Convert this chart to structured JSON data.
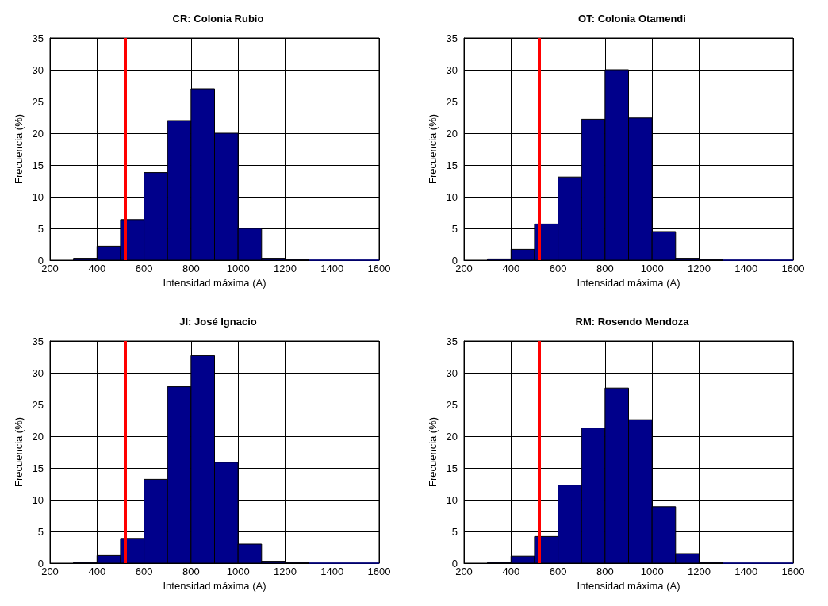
{
  "chart_data": [
    {
      "type": "histogram",
      "title": "CR: Colonia Rubio",
      "xlabel": "Intensidad máxima (A)",
      "ylabel": "Frecuencia (%)",
      "bins": [
        300,
        400,
        500,
        600,
        700,
        800,
        900,
        1000,
        1100,
        1200,
        1300,
        1400,
        1500,
        1600
      ],
      "values": [
        0.3,
        2.2,
        6.4,
        13.8,
        22,
        27,
        20,
        5,
        0.3,
        0.1,
        0,
        0,
        0
      ],
      "color": "#00008b",
      "xlim": [
        200,
        1600
      ],
      "xticks": [
        200,
        400,
        600,
        800,
        1000,
        1200,
        1400,
        1600
      ],
      "ylim": [
        0,
        35
      ],
      "yticks": [
        0,
        5,
        10,
        15,
        20,
        25,
        30,
        35
      ],
      "grid": true,
      "ref_lines": [
        {
          "axis": "x",
          "value": 520,
          "color": "#ff0000"
        }
      ]
    },
    {
      "type": "histogram",
      "title": "OT: Colonia Otamendi",
      "xlabel": "Intensidad máxima (A)",
      "ylabel": "Frecuencia (%)",
      "bins": [
        300,
        400,
        500,
        600,
        700,
        800,
        900,
        1000,
        1100,
        1200,
        1300,
        1400,
        1500,
        1600
      ],
      "values": [
        0.2,
        1.7,
        5.7,
        13.1,
        22.2,
        30,
        22.4,
        4.5,
        0.3,
        0.1,
        0,
        0,
        0
      ],
      "color": "#00008b",
      "xlim": [
        200,
        1600
      ],
      "xticks": [
        200,
        400,
        600,
        800,
        1000,
        1200,
        1400,
        1600
      ],
      "ylim": [
        0,
        35
      ],
      "yticks": [
        0,
        5,
        10,
        15,
        20,
        25,
        30,
        35
      ],
      "grid": true,
      "ref_lines": [
        {
          "axis": "x",
          "value": 520,
          "color": "#ff0000"
        }
      ]
    },
    {
      "type": "histogram",
      "title": "JI: José Ignacio",
      "xlabel": "Intensidad máxima (A)",
      "ylabel": "Frecuencia (%)",
      "bins": [
        300,
        400,
        500,
        600,
        700,
        800,
        900,
        1000,
        1100,
        1200,
        1300,
        1400,
        1500,
        1600
      ],
      "values": [
        0.1,
        1.2,
        3.9,
        13.2,
        27.8,
        32.7,
        15.9,
        3,
        0.3,
        0.1,
        0,
        0,
        0
      ],
      "color": "#00008b",
      "xlim": [
        200,
        1600
      ],
      "xticks": [
        200,
        400,
        600,
        800,
        1000,
        1200,
        1400,
        1600
      ],
      "ylim": [
        0,
        35
      ],
      "yticks": [
        0,
        5,
        10,
        15,
        20,
        25,
        30,
        35
      ],
      "grid": true,
      "ref_lines": [
        {
          "axis": "x",
          "value": 520,
          "color": "#ff0000"
        }
      ]
    },
    {
      "type": "histogram",
      "title": "RM: Rosendo Mendoza",
      "xlabel": "Intensidad máxima (A)",
      "ylabel": "Frecuencia (%)",
      "bins": [
        300,
        400,
        500,
        600,
        700,
        800,
        900,
        1000,
        1100,
        1200,
        1300,
        1400,
        1500,
        1600
      ],
      "values": [
        0.1,
        1.1,
        4.2,
        12.3,
        21.3,
        27.6,
        22.6,
        8.9,
        1.5,
        0.1,
        0,
        0,
        0
      ],
      "color": "#00008b",
      "xlim": [
        200,
        1600
      ],
      "xticks": [
        200,
        400,
        600,
        800,
        1000,
        1200,
        1400,
        1600
      ],
      "ylim": [
        0,
        35
      ],
      "yticks": [
        0,
        5,
        10,
        15,
        20,
        25,
        30,
        35
      ],
      "grid": true,
      "ref_lines": [
        {
          "axis": "x",
          "value": 520,
          "color": "#ff0000"
        }
      ]
    }
  ]
}
